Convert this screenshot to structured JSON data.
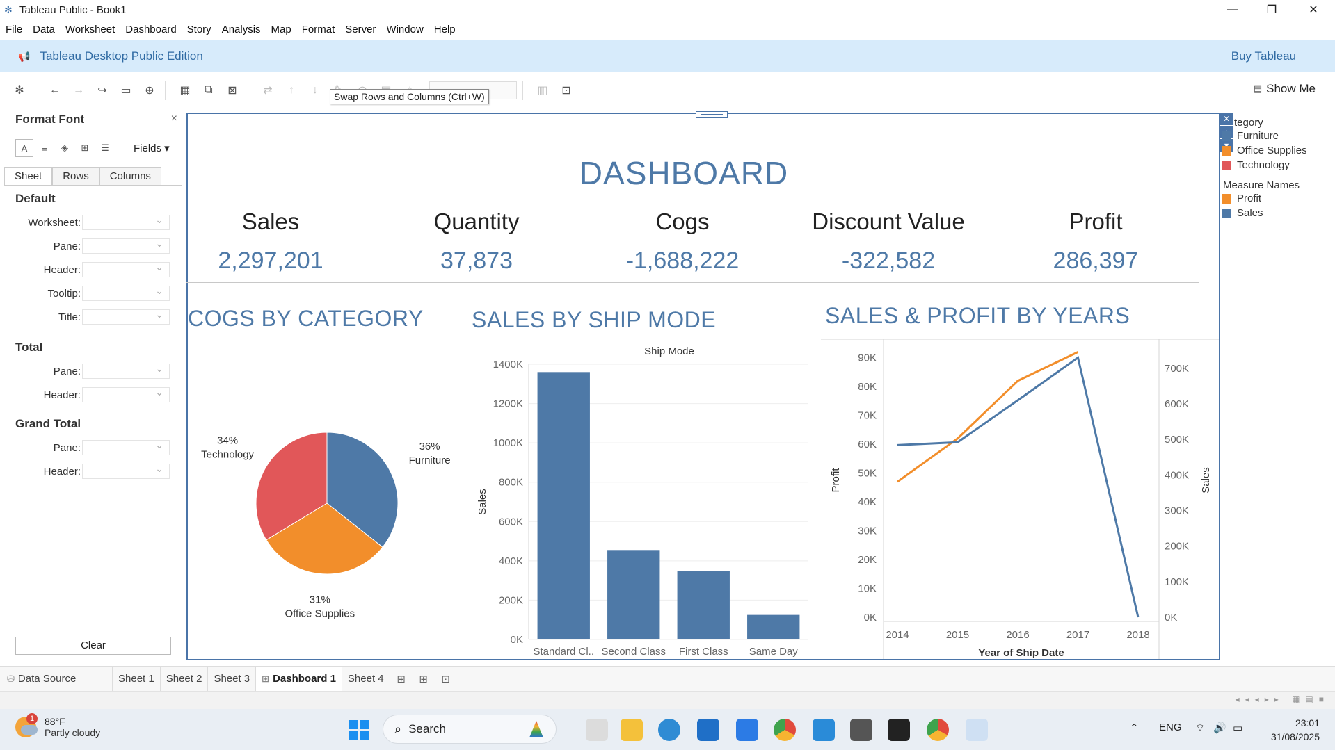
{
  "window": {
    "title": "Tableau Public - Book1",
    "minimize": "—",
    "maximize": "❐",
    "close": "✕"
  },
  "menu": [
    "File",
    "Data",
    "Worksheet",
    "Dashboard",
    "Story",
    "Analysis",
    "Map",
    "Format",
    "Server",
    "Window",
    "Help"
  ],
  "banner": {
    "edition": "Tableau Desktop Public Edition",
    "buy": "Buy Tableau"
  },
  "toolbar": {
    "tooltip": "Swap Rows and Columns (Ctrl+W)",
    "show_me": "Show Me"
  },
  "format_pane": {
    "title": "Format Font",
    "close": "×",
    "fields_label": "Fields ▾",
    "tabs": [
      "Sheet",
      "Rows",
      "Columns"
    ],
    "sections": {
      "default": "Default",
      "total": "Total",
      "grand_total": "Grand Total"
    },
    "default_rows": [
      "Worksheet:",
      "Pane:",
      "Header:",
      "Tooltip:",
      "Title:"
    ],
    "total_rows": [
      "Pane:",
      "Header:"
    ],
    "grand_total_rows": [
      "Pane:",
      "Header:"
    ],
    "clear": "Clear"
  },
  "dashboard": {
    "title": "DASHBOARD",
    "kpis": [
      {
        "label": "Sales",
        "value": "2,297,201"
      },
      {
        "label": "Quantity",
        "value": "37,873"
      },
      {
        "label": "Cogs",
        "value": "-1,688,222"
      },
      {
        "label": "Discount Value",
        "value": "-322,582"
      },
      {
        "label": "Profit",
        "value": "286,397"
      }
    ],
    "section_titles": {
      "cogs": "COGS BY CATEGORY",
      "ship": "SALES BY SHIP MODE",
      "years": "SALES & PROFIT BY YEARS"
    }
  },
  "legend": {
    "category_title": "tegory",
    "category_items": [
      {
        "label": "Furniture",
        "color": "#4e79a7"
      },
      {
        "label": "Office Supplies",
        "color": "#f28e2b"
      },
      {
        "label": "Technology",
        "color": "#e15759"
      }
    ],
    "measure_title": "Measure Names",
    "measure_items": [
      {
        "label": "Profit",
        "color": "#f28e2b"
      },
      {
        "label": "Sales",
        "color": "#4e79a7"
      }
    ]
  },
  "chart_data": [
    {
      "type": "pie",
      "title": "COGS BY CATEGORY",
      "slices": [
        {
          "label": "Furniture",
          "percent_label": "36%",
          "value": 36,
          "color": "#4e79a7"
        },
        {
          "label": "Office Supplies",
          "percent_label": "31%",
          "value": 31,
          "color": "#f28e2b"
        },
        {
          "label": "Technology",
          "percent_label": "34%",
          "value": 34,
          "color": "#e15759"
        }
      ]
    },
    {
      "type": "bar",
      "title": "SALES BY SHIP MODE",
      "header": "Ship Mode",
      "ylabel": "Sales",
      "categories": [
        "Standard Cl..",
        "Second Class",
        "First Class",
        "Same Day"
      ],
      "values": [
        1360000,
        455000,
        350000,
        125000
      ],
      "ylim": [
        0,
        1400000
      ],
      "yticks": [
        0,
        200000,
        400000,
        600000,
        800000,
        1000000,
        1200000,
        1400000
      ],
      "ytick_labels": [
        "0K",
        "200K",
        "400K",
        "600K",
        "800K",
        "1000K",
        "1200K",
        "1400K"
      ],
      "color": "#4e79a7"
    },
    {
      "type": "line",
      "title": "SALES & PROFIT BY YEARS",
      "xlabel": "Year of Ship Date",
      "x": [
        "2014",
        "2015",
        "2016",
        "2017",
        "2018"
      ],
      "left_axis": {
        "label": "Profit",
        "ylim": [
          0,
          95000
        ],
        "ticks": [
          0,
          10000,
          20000,
          30000,
          40000,
          50000,
          60000,
          70000,
          80000,
          90000
        ],
        "tick_labels": [
          "0K",
          "10K",
          "20K",
          "30K",
          "40K",
          "50K",
          "60K",
          "70K",
          "80K",
          "90K"
        ]
      },
      "right_axis": {
        "label": "Sales",
        "ylim": [
          0,
          770000
        ],
        "ticks": [
          0,
          100000,
          200000,
          300000,
          400000,
          500000,
          600000,
          700000
        ],
        "tick_labels": [
          "0K",
          "100K",
          "200K",
          "300K",
          "400K",
          "500K",
          "600K",
          "700K"
        ]
      },
      "series": [
        {
          "name": "Profit",
          "axis": "left",
          "values": [
            47000,
            62000,
            82000,
            92000,
            null
          ],
          "color": "#f28e2b"
        },
        {
          "name": "Sales",
          "axis": "right",
          "values": [
            484000,
            492000,
            610000,
            730000,
            0
          ],
          "color": "#4e79a7"
        }
      ]
    }
  ],
  "sheet_tabs": {
    "data_source": "Data Source",
    "sheets": [
      "Sheet 1",
      "Sheet 2",
      "Sheet 3",
      "Dashboard 1",
      "Sheet 4"
    ],
    "active": "Dashboard 1"
  },
  "taskbar": {
    "weather_temp": "88°F",
    "weather_cond": "Partly cloudy",
    "weather_badge": "1",
    "search": "Search",
    "lang": "ENG",
    "time": "23:01",
    "date": "31/08/2025"
  }
}
